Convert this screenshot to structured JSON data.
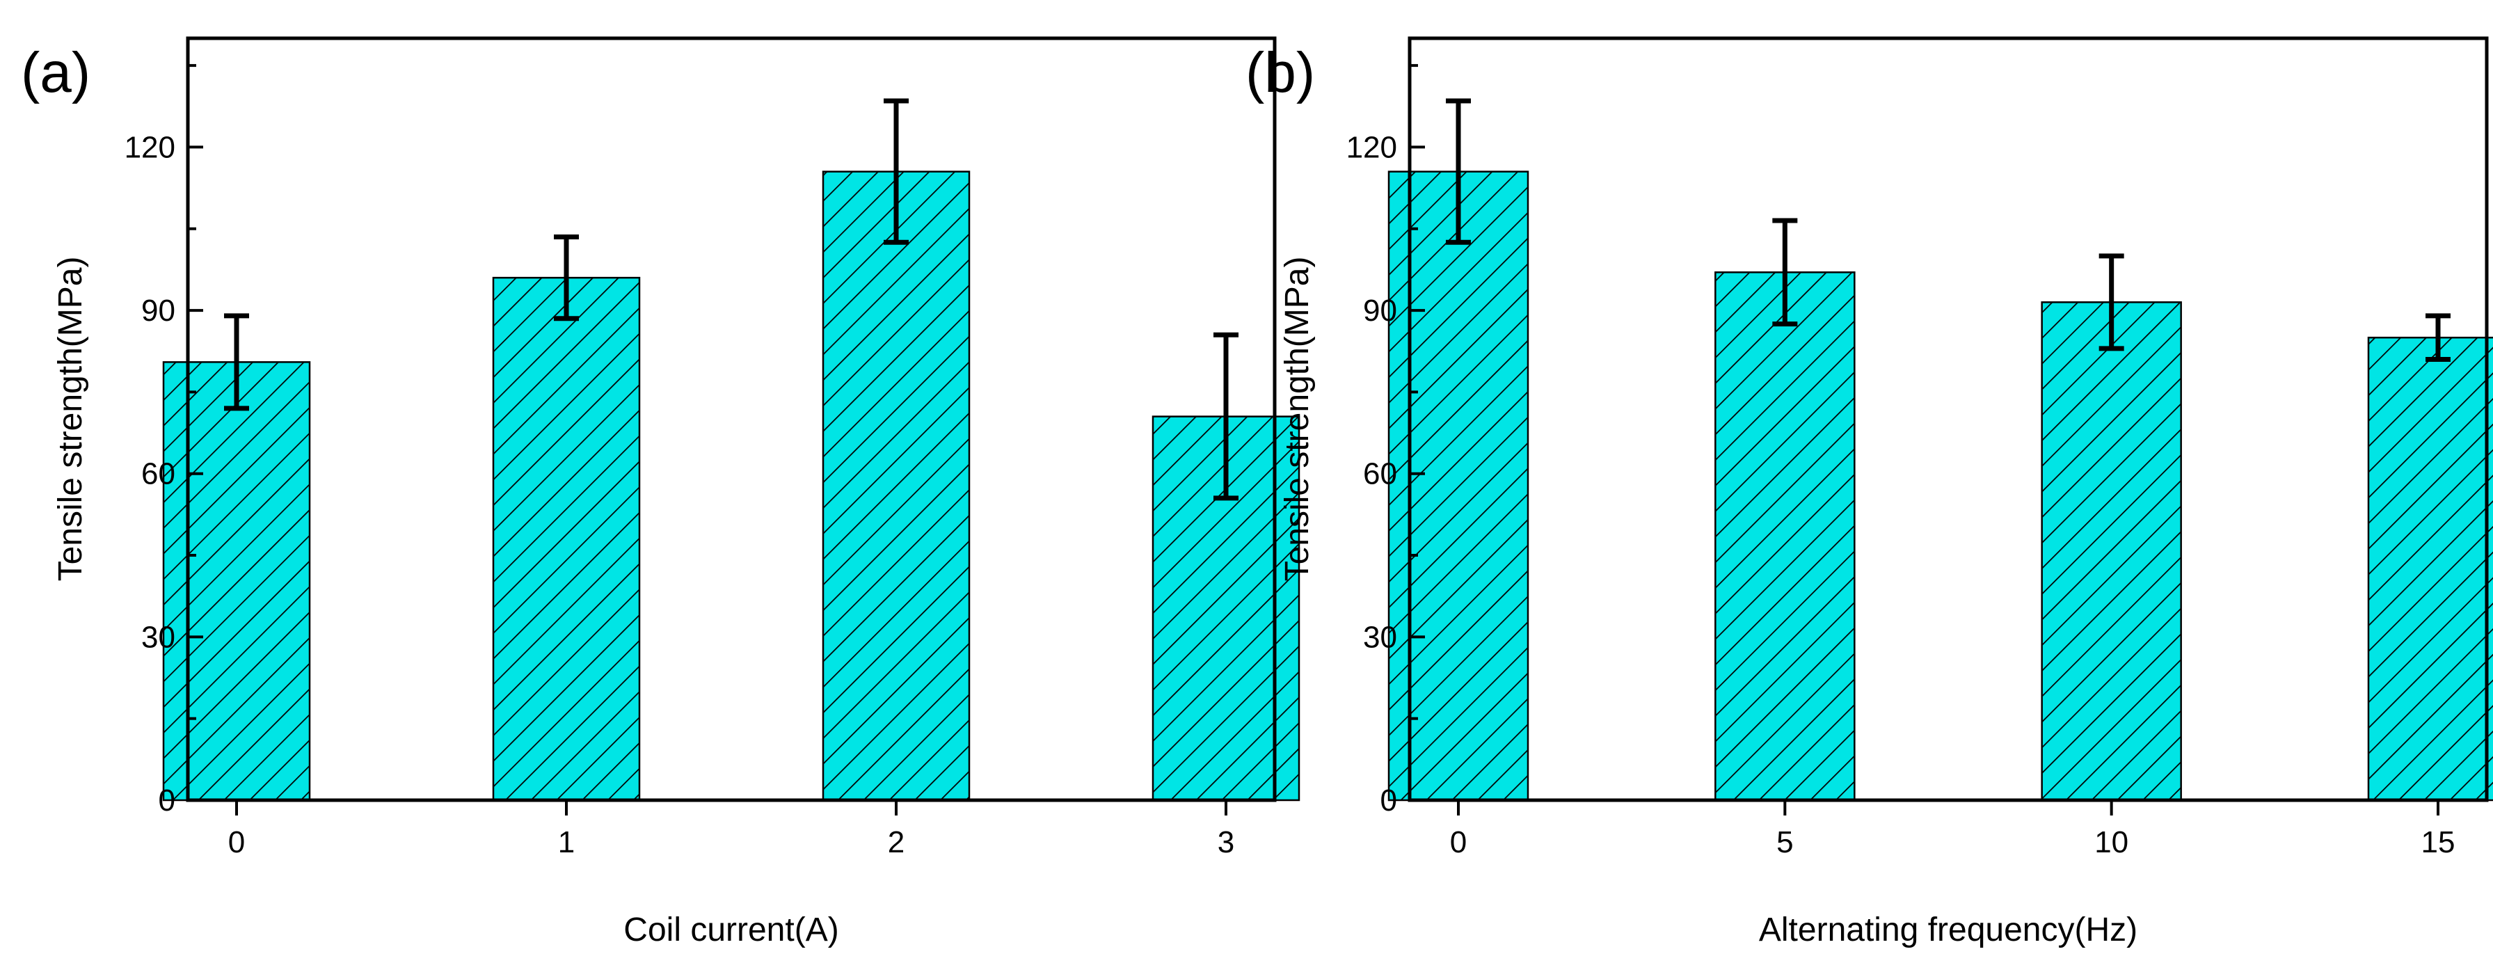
{
  "colors": {
    "bar_fill": "#00E5E5",
    "hatch": "#000000",
    "axis": "#000000",
    "error_bar": "#000000"
  },
  "chart_data": [
    {
      "type": "bar",
      "panel_label": "(a)",
      "categories": [
        "0",
        "1",
        "2",
        "3"
      ],
      "values": [
        80.5,
        96.0,
        115.5,
        70.5
      ],
      "errors": [
        8.5,
        7.5,
        13.0,
        15.0
      ],
      "xlabel": "Coil current(A)",
      "ylabel": "Tensile strength(MPa)",
      "ylim": [
        0,
        140
      ],
      "yticks": [
        0,
        30,
        60,
        90,
        120
      ],
      "grid": false,
      "pattern": "diagonal-hatch"
    },
    {
      "type": "bar",
      "panel_label": "(b)",
      "categories": [
        "0",
        "5",
        "10",
        "15"
      ],
      "values": [
        115.5,
        97.0,
        91.5,
        85.0
      ],
      "errors": [
        13.0,
        9.5,
        8.5,
        4.0
      ],
      "xlabel": "Alternating frequency(Hz)",
      "ylabel": "Tensile strength(MPa)",
      "ylim": [
        0,
        140
      ],
      "yticks": [
        0,
        30,
        60,
        90,
        120
      ],
      "grid": false,
      "pattern": "diagonal-hatch"
    }
  ]
}
